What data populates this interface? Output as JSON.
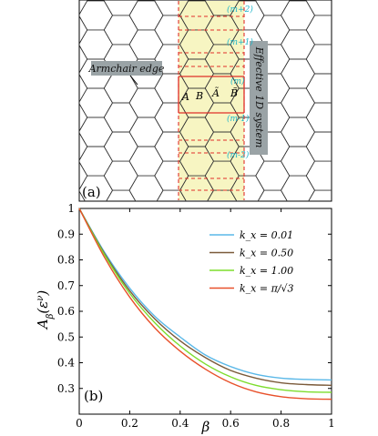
{
  "panel_a": {
    "label": "(a)",
    "armchair_label": "Armchair edge",
    "effective_label": "Effective 1D system",
    "row_labels": [
      "(m+2)",
      "(m+1)",
      "(m)",
      "(m-1)",
      "(m-2)"
    ],
    "site_labels": [
      "A",
      "B",
      "Ã",
      "B̃"
    ],
    "colors": {
      "strip": "#f7f5c2",
      "edge": "#5fe22f",
      "red": "#e0302a",
      "cyan": "#1fb5c9",
      "badge": "#9aa3a6"
    }
  },
  "panel_b": {
    "label": "(b)",
    "ylabel": "A_β(ε^ν)",
    "xlabel": "β"
  },
  "chart_data": {
    "type": "line",
    "xlabel": "β",
    "ylabel": "A_β(ε^ν)",
    "xlim": [
      0,
      1
    ],
    "ylim": [
      0.2,
      1.0
    ],
    "xticks": [
      "0",
      "0.2",
      "0.4",
      "0.6",
      "0.8",
      "1"
    ],
    "yticks": [
      "0.3",
      "0.4",
      "0.5",
      "0.6",
      "0.7",
      "0.8",
      "0.9",
      "1"
    ],
    "legend_position": "top-right",
    "x": [
      0,
      0.1,
      0.2,
      0.3,
      0.4,
      0.5,
      0.6,
      0.7,
      0.8,
      0.9,
      1.0
    ],
    "series": [
      {
        "name": "k_x = 0.01",
        "color": "#5ab8e8",
        "values": [
          1.0,
          0.83,
          0.69,
          0.58,
          0.5,
          0.43,
          0.385,
          0.355,
          0.34,
          0.335,
          0.333
        ]
      },
      {
        "name": "k_x = 0.50",
        "color": "#7a5a3a",
        "values": [
          1.0,
          0.825,
          0.68,
          0.57,
          0.485,
          0.42,
          0.37,
          0.34,
          0.322,
          0.315,
          0.312
        ]
      },
      {
        "name": "k_x = 1.00",
        "color": "#7ddd2d",
        "values": [
          1.0,
          0.82,
          0.67,
          0.555,
          0.465,
          0.395,
          0.345,
          0.312,
          0.295,
          0.287,
          0.285
        ]
      },
      {
        "name": "k_x = π/√3",
        "color": "#e8502a",
        "values": [
          1.0,
          0.81,
          0.655,
          0.535,
          0.445,
          0.375,
          0.322,
          0.287,
          0.268,
          0.26,
          0.258
        ]
      }
    ]
  }
}
